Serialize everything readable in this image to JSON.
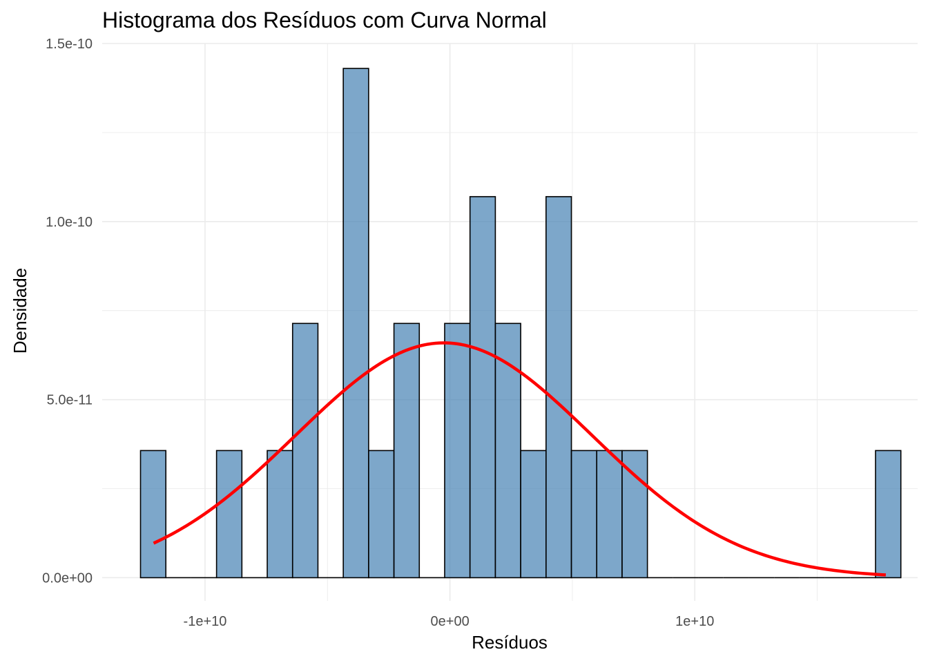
{
  "chart_data": {
    "type": "bar",
    "title": "Histograma dos Resíduos com Curva Normal",
    "xlabel": "Resíduos",
    "ylabel": "Densidade",
    "xlim": [
      -14200000000.0,
      19100000000.0
    ],
    "ylim": [
      -6.5e-12,
      1.5e-10
    ],
    "x_ticks": [
      {
        "value": -10000000000.0,
        "label": "-1e+10"
      },
      {
        "value": 0,
        "label": "0e+00"
      },
      {
        "value": 10000000000.0,
        "label": "1e+10"
      }
    ],
    "y_ticks": [
      {
        "value": 0,
        "label": "0.0e+00"
      },
      {
        "value": 5e-11,
        "label": "5.0e-11"
      },
      {
        "value": 1e-10,
        "label": "1.0e-10"
      },
      {
        "value": 1.5e-10,
        "label": "1.5e-10"
      }
    ],
    "bin_width": 1035000000.0,
    "bin_start": -12635000000.0,
    "densities": [
      3.57e-11,
      0,
      0,
      3.57e-11,
      0,
      3.57e-11,
      7.14e-11,
      0,
      1.43e-10,
      3.57e-11,
      7.14e-11,
      0,
      7.14e-11,
      1.07e-10,
      7.14e-11,
      3.57e-11,
      1.07e-10,
      3.57e-11,
      3.57e-11,
      3.57e-11,
      0,
      0,
      0,
      0,
      0,
      0,
      0,
      0,
      0,
      3.57e-11
    ],
    "normal_curve": {
      "mean": -250000000.0,
      "sd": 6050000000.0,
      "from": -12100000000.0,
      "to": 17800000000.0
    },
    "bar_fill": "#4682b4",
    "bar_border": "#000000",
    "curve_color": "#ff0000",
    "grid": true,
    "legend": "none"
  }
}
